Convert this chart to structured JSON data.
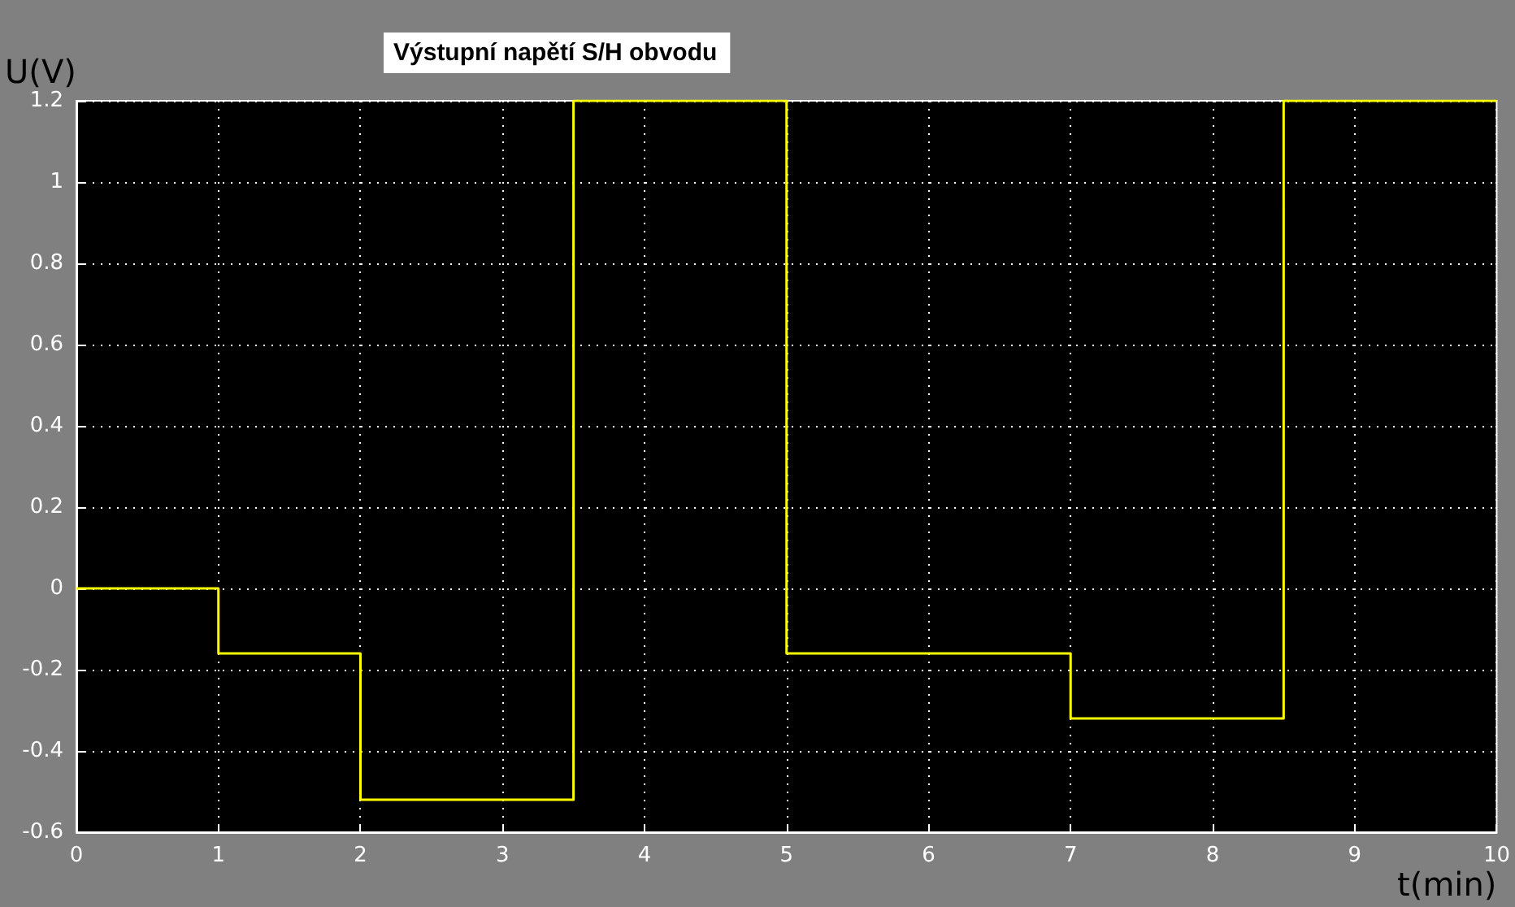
{
  "chart_data": {
    "type": "step",
    "title": "Výstupní napětí S/H obvodu",
    "xlabel": "t(min)",
    "ylabel": "U(V)",
    "x": [
      0,
      1,
      2,
      3.5,
      5,
      7,
      8.5,
      10
    ],
    "series": [
      {
        "color": "#ffff00",
        "values": [
          0,
          -0.16,
          -0.52,
          1.2,
          -0.16,
          -0.32,
          1.2,
          1.2
        ]
      }
    ],
    "xlim": [
      0,
      10
    ],
    "xticks": [
      0,
      1,
      2,
      3,
      4,
      5,
      6,
      7,
      8,
      9,
      10
    ],
    "ylim": [
      -0.6,
      1.2
    ],
    "yticks": [
      -0.6,
      -0.4,
      -0.2,
      0,
      0.2,
      0.4,
      0.6,
      0.8,
      1,
      1.2
    ],
    "grid": true,
    "marker": "none",
    "line_style": "solid"
  }
}
